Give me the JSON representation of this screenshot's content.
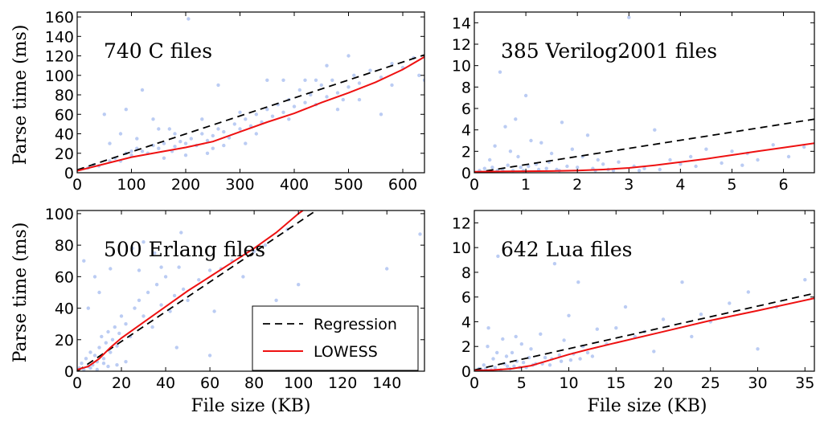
{
  "figure": {
    "ylabel_top": "Parse time (ms)",
    "ylabel_bottom": "Parse time (ms)",
    "xlabel_left": "File size (KB)",
    "xlabel_right": "File size (KB)"
  },
  "legend": {
    "placement": "lower-right of bottom-left panel",
    "regression": "Regression",
    "lowess": "LOWESS"
  },
  "colors": {
    "points": "#aabff0",
    "regression": "#000000",
    "lowess": "#ee1111"
  },
  "chart_data": [
    {
      "type": "scatter",
      "title": "740 C files",
      "xlim": [
        0,
        640
      ],
      "ylim": [
        0,
        165
      ],
      "xticks": [
        0,
        100,
        200,
        300,
        400,
        500,
        600
      ],
      "yticks": [
        0,
        20,
        40,
        60,
        80,
        100,
        120,
        140,
        160
      ],
      "regression": {
        "x": [
          0,
          640
        ],
        "y": [
          3,
          121
        ]
      },
      "lowess": {
        "x": [
          0,
          50,
          100,
          150,
          200,
          250,
          300,
          350,
          400,
          450,
          500,
          550,
          600,
          640
        ],
        "y": [
          2,
          9,
          16,
          21,
          26,
          32,
          42,
          52,
          61,
          72,
          82,
          93,
          106,
          119
        ]
      },
      "points": [
        [
          20,
          5
        ],
        [
          30,
          8
        ],
        [
          40,
          7
        ],
        [
          50,
          60
        ],
        [
          60,
          12
        ],
        [
          70,
          15
        ],
        [
          80,
          12
        ],
        [
          90,
          20
        ],
        [
          100,
          18
        ],
        [
          110,
          25
        ],
        [
          120,
          22
        ],
        [
          130,
          20
        ],
        [
          140,
          28
        ],
        [
          150,
          25
        ],
        [
          160,
          30
        ],
        [
          170,
          45
        ],
        [
          175,
          22
        ],
        [
          180,
          27
        ],
        [
          190,
          32
        ],
        [
          200,
          30
        ],
        [
          210,
          35
        ],
        [
          220,
          28
        ],
        [
          230,
          40
        ],
        [
          240,
          33
        ],
        [
          250,
          38
        ],
        [
          260,
          45
        ],
        [
          270,
          42
        ],
        [
          280,
          36
        ],
        [
          290,
          50
        ],
        [
          300,
          45
        ],
        [
          310,
          55
        ],
        [
          320,
          48
        ],
        [
          330,
          60
        ],
        [
          340,
          52
        ],
        [
          350,
          65
        ],
        [
          360,
          58
        ],
        [
          370,
          70
        ],
        [
          380,
          62
        ],
        [
          390,
          75
        ],
        [
          400,
          68
        ],
        [
          410,
          85
        ],
        [
          420,
          72
        ],
        [
          430,
          80
        ],
        [
          440,
          70
        ],
        [
          450,
          90
        ],
        [
          460,
          78
        ],
        [
          470,
          95
        ],
        [
          480,
          82
        ],
        [
          490,
          75
        ],
        [
          500,
          88
        ],
        [
          510,
          100
        ],
        [
          520,
          92
        ],
        [
          540,
          105
        ],
        [
          560,
          98
        ],
        [
          580,
          112
        ],
        [
          600,
          108
        ],
        [
          620,
          118
        ],
        [
          630,
          100
        ],
        [
          640,
          95
        ],
        [
          205,
          158
        ],
        [
          120,
          85
        ],
        [
          90,
          65
        ],
        [
          150,
          45
        ],
        [
          260,
          90
        ],
        [
          350,
          95
        ],
        [
          420,
          95
        ],
        [
          500,
          120
        ],
        [
          560,
          60
        ],
        [
          480,
          65
        ],
        [
          230,
          55
        ],
        [
          300,
          62
        ],
        [
          180,
          40
        ],
        [
          60,
          30
        ],
        [
          110,
          35
        ],
        [
          240,
          20
        ],
        [
          270,
          28
        ],
        [
          330,
          40
        ],
        [
          390,
          55
        ],
        [
          440,
          95
        ],
        [
          520,
          75
        ],
        [
          580,
          90
        ],
        [
          460,
          110
        ],
        [
          380,
          95
        ],
        [
          310,
          30
        ],
        [
          200,
          18
        ],
        [
          160,
          15
        ],
        [
          250,
          25
        ],
        [
          100,
          22
        ],
        [
          80,
          40
        ],
        [
          140,
          55
        ]
      ]
    },
    {
      "type": "scatter",
      "title": "385 Verilog2001 files",
      "xlim": [
        0,
        6.6
      ],
      "ylim": [
        0,
        15
      ],
      "xticks": [
        0,
        1,
        2,
        3,
        4,
        5,
        6
      ],
      "yticks": [
        0,
        2,
        4,
        6,
        8,
        10,
        12,
        14
      ],
      "regression": {
        "x": [
          0,
          6.6
        ],
        "y": [
          0,
          5
        ]
      },
      "lowess": {
        "x": [
          0,
          0.5,
          1,
          1.5,
          2,
          2.5,
          3,
          3.5,
          4,
          4.5,
          5,
          5.5,
          6,
          6.6
        ],
        "y": [
          0.1,
          0.12,
          0.14,
          0.16,
          0.2,
          0.3,
          0.45,
          0.7,
          1.0,
          1.3,
          1.65,
          2.0,
          2.35,
          2.75
        ]
      },
      "points": [
        [
          0.1,
          0.2
        ],
        [
          0.2,
          0.4
        ],
        [
          0.3,
          1.2
        ],
        [
          0.4,
          2.5
        ],
        [
          0.5,
          9.4
        ],
        [
          0.55,
          0.3
        ],
        [
          0.6,
          4.3
        ],
        [
          0.7,
          2
        ],
        [
          0.8,
          5
        ],
        [
          0.9,
          0.5
        ],
        [
          1.0,
          7.2
        ],
        [
          1.1,
          3
        ],
        [
          1.2,
          0.8
        ],
        [
          1.3,
          2.8
        ],
        [
          1.4,
          0.4
        ],
        [
          1.5,
          1.8
        ],
        [
          1.6,
          0.3
        ],
        [
          1.7,
          4.7
        ],
        [
          1.8,
          0.6
        ],
        [
          1.9,
          2.2
        ],
        [
          2.0,
          0.5
        ],
        [
          2.1,
          1.5
        ],
        [
          2.2,
          3.5
        ],
        [
          2.3,
          0.4
        ],
        [
          2.4,
          1.2
        ],
        [
          2.5,
          0.8
        ],
        [
          2.6,
          0.3
        ],
        [
          2.8,
          1.0
        ],
        [
          3.0,
          14.5
        ],
        [
          3.1,
          0.6
        ],
        [
          3.3,
          0.4
        ],
        [
          3.5,
          4.0
        ],
        [
          3.8,
          1.2
        ],
        [
          4.0,
          0.8
        ],
        [
          4.2,
          1.5
        ],
        [
          4.5,
          2.2
        ],
        [
          4.8,
          0.9
        ],
        [
          5.0,
          2.0
        ],
        [
          5.3,
          1.8
        ],
        [
          5.5,
          1.2
        ],
        [
          5.8,
          2.6
        ],
        [
          6.1,
          1.5
        ],
        [
          6.4,
          2.4
        ],
        [
          0.25,
          0.1
        ],
        [
          0.35,
          0.5
        ],
        [
          0.45,
          0.2
        ],
        [
          0.65,
          0.7
        ],
        [
          0.75,
          0.2
        ],
        [
          0.85,
          1.5
        ],
        [
          0.95,
          0.2
        ],
        [
          1.05,
          0.6
        ],
        [
          1.25,
          0.3
        ],
        [
          1.45,
          1.0
        ],
        [
          1.65,
          0.2
        ],
        [
          2.35,
          0.2
        ],
        [
          2.7,
          0.2
        ],
        [
          3.2,
          0.2
        ],
        [
          3.6,
          0.3
        ],
        [
          4.3,
          0.6
        ],
        [
          5.2,
          0.7
        ]
      ]
    },
    {
      "type": "scatter",
      "title": "500 Erlang files",
      "xlim": [
        0,
        157
      ],
      "ylim": [
        0,
        102
      ],
      "xticks": [
        0,
        20,
        40,
        60,
        80,
        100,
        120,
        140
      ],
      "yticks": [
        0,
        20,
        40,
        60,
        80,
        100
      ],
      "regression": {
        "x": [
          0,
          108
        ],
        "y": [
          0,
          102
        ]
      },
      "lowess": {
        "x": [
          0,
          5,
          10,
          15,
          20,
          30,
          40,
          50,
          60,
          70,
          80,
          90,
          100,
          102
        ],
        "y": [
          1,
          3,
          8,
          15,
          21,
          31,
          41,
          51,
          60,
          69,
          78,
          88,
          100,
          102
        ]
      },
      "points": [
        [
          1,
          2
        ],
        [
          2,
          5
        ],
        [
          3,
          1
        ],
        [
          4,
          8
        ],
        [
          5,
          3
        ],
        [
          6,
          12
        ],
        [
          7,
          4
        ],
        [
          8,
          10
        ],
        [
          9,
          6
        ],
        [
          10,
          15
        ],
        [
          11,
          22
        ],
        [
          12,
          8
        ],
        [
          13,
          18
        ],
        [
          14,
          25
        ],
        [
          15,
          12
        ],
        [
          16,
          20
        ],
        [
          17,
          28
        ],
        [
          18,
          16
        ],
        [
          19,
          24
        ],
        [
          20,
          35
        ],
        [
          22,
          30
        ],
        [
          24,
          22
        ],
        [
          26,
          40
        ],
        [
          28,
          45
        ],
        [
          30,
          35
        ],
        [
          32,
          50
        ],
        [
          34,
          28
        ],
        [
          36,
          55
        ],
        [
          38,
          42
        ],
        [
          40,
          60
        ],
        [
          42,
          38
        ],
        [
          44,
          48
        ],
        [
          46,
          66
        ],
        [
          48,
          52
        ],
        [
          50,
          45
        ],
        [
          55,
          58
        ],
        [
          60,
          64
        ],
        [
          62,
          38
        ],
        [
          65,
          65
        ],
        [
          70,
          70
        ],
        [
          75,
          60
        ],
        [
          80,
          76
        ],
        [
          85,
          80
        ],
        [
          90,
          45
        ],
        [
          95,
          90
        ],
        [
          100,
          30
        ],
        [
          5,
          40
        ],
        [
          8,
          60
        ],
        [
          3,
          70
        ],
        [
          10,
          50
        ],
        [
          15,
          65
        ],
        [
          25,
          78
        ],
        [
          30,
          82
        ],
        [
          38,
          66
        ],
        [
          12,
          5
        ],
        [
          18,
          4
        ],
        [
          22,
          6
        ],
        [
          6,
          2
        ],
        [
          9,
          1
        ],
        [
          14,
          3
        ],
        [
          45,
          15
        ],
        [
          60,
          10
        ],
        [
          80,
          20
        ],
        [
          100,
          55
        ],
        [
          140,
          65
        ],
        [
          155,
          87
        ],
        [
          120,
          30
        ],
        [
          28,
          64
        ],
        [
          35,
          75
        ],
        [
          47,
          88
        ]
      ]
    },
    {
      "type": "scatter",
      "title": "642 Lua files",
      "xlim": [
        0,
        36
      ],
      "ylim": [
        0,
        13
      ],
      "xticks": [
        0,
        5,
        10,
        15,
        20,
        25,
        30,
        35
      ],
      "yticks": [
        0,
        2,
        4,
        6,
        8,
        10,
        12
      ],
      "regression": {
        "x": [
          0,
          36
        ],
        "y": [
          0.1,
          6.3
        ]
      },
      "lowess": {
        "x": [
          0,
          2,
          4,
          6,
          8,
          10,
          12,
          15,
          20,
          25,
          30,
          36
        ],
        "y": [
          0.05,
          0.1,
          0.2,
          0.45,
          0.9,
          1.35,
          1.75,
          2.3,
          3.2,
          4.1,
          4.9,
          5.9
        ]
      },
      "points": [
        [
          0.5,
          0.2
        ],
        [
          1,
          0.5
        ],
        [
          1.5,
          3.5
        ],
        [
          2,
          1
        ],
        [
          2.5,
          9.3
        ],
        [
          3,
          2.6
        ],
        [
          3.5,
          0.4
        ],
        [
          4,
          1.5
        ],
        [
          4.5,
          0.8
        ],
        [
          5,
          2.2
        ],
        [
          5.5,
          0.3
        ],
        [
          6,
          1.8
        ],
        [
          6.5,
          0.6
        ],
        [
          7,
          3
        ],
        [
          7.5,
          1.1
        ],
        [
          8,
          0.5
        ],
        [
          8.5,
          8.7
        ],
        [
          9,
          1.3
        ],
        [
          9.5,
          2.5
        ],
        [
          10,
          4.5
        ],
        [
          10.5,
          1.4
        ],
        [
          11,
          7.2
        ],
        [
          11.5,
          2
        ],
        [
          12,
          1.5
        ],
        [
          13,
          3.4
        ],
        [
          14,
          2.2
        ],
        [
          15,
          3.5
        ],
        [
          16,
          5.2
        ],
        [
          17,
          2.8
        ],
        [
          18,
          3.2
        ],
        [
          19,
          1.6
        ],
        [
          20,
          4.2
        ],
        [
          22,
          7.2
        ],
        [
          23,
          2.8
        ],
        [
          24,
          4.6
        ],
        [
          25,
          4.0
        ],
        [
          27,
          5.5
        ],
        [
          29,
          6.4
        ],
        [
          30,
          1.8
        ],
        [
          32,
          5.2
        ],
        [
          35,
          7.4
        ],
        [
          0.8,
          0.1
        ],
        [
          1.2,
          0.2
        ],
        [
          1.8,
          0.1
        ],
        [
          2.2,
          0.3
        ],
        [
          2.8,
          0.1
        ],
        [
          3.2,
          0.6
        ],
        [
          3.8,
          0.2
        ],
        [
          4.2,
          0.4
        ],
        [
          4.8,
          0.3
        ],
        [
          5.2,
          0.7
        ],
        [
          6.2,
          0.5
        ],
        [
          7.2,
          0.6
        ],
        [
          8.2,
          1.0
        ],
        [
          9.2,
          0.8
        ],
        [
          10.2,
          0.9
        ],
        [
          11.2,
          1.0
        ],
        [
          12.5,
          1.2
        ],
        [
          1.4,
          2.0
        ],
        [
          2.4,
          1.5
        ],
        [
          3.4,
          1.2
        ],
        [
          4.4,
          2.8
        ],
        [
          5.8,
          1.1
        ]
      ]
    }
  ]
}
